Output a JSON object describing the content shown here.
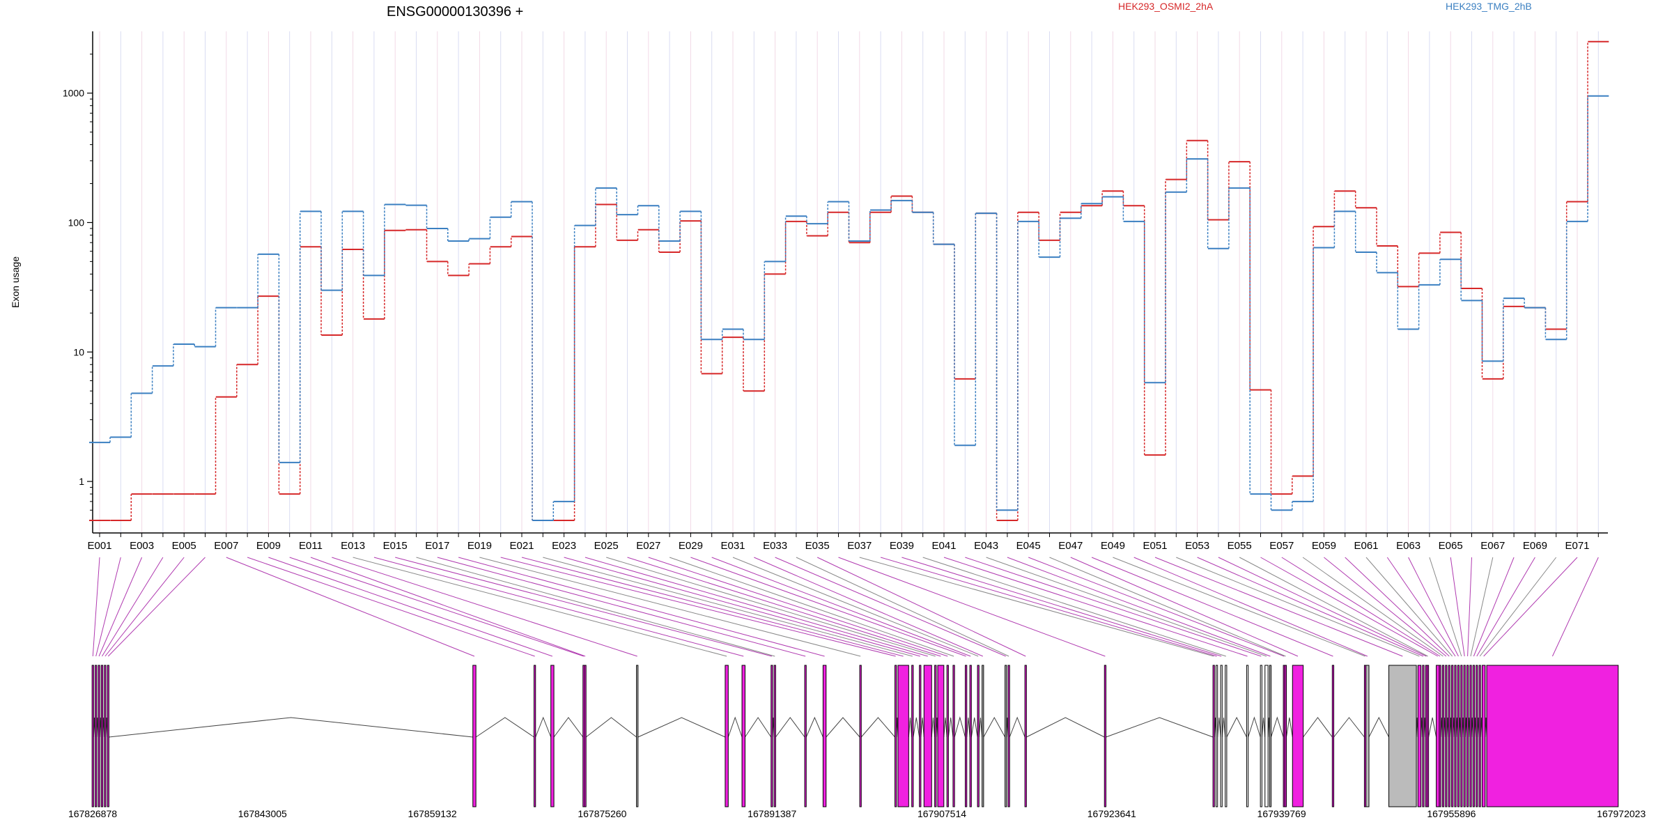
{
  "chart_data": {
    "type": "line",
    "title": "ENSG00000130396 +",
    "ylabel": "Exon usage",
    "yscale": "log",
    "ylim": [
      0.4,
      3000
    ],
    "yticks": [
      1,
      10,
      100,
      1000
    ],
    "ytick_labels": [
      "1",
      "10",
      "100",
      "1000"
    ],
    "grid": "vertical lines at each exon",
    "legend_placement": "top",
    "categories": [
      "E001",
      "E002",
      "E003",
      "E004",
      "E005",
      "E006",
      "E007",
      "E008",
      "E009",
      "E010",
      "E011",
      "E012",
      "E013",
      "E014",
      "E015",
      "E016",
      "E017",
      "E018",
      "E019",
      "E020",
      "E021",
      "E022",
      "E023",
      "E024",
      "E025",
      "E026",
      "E027",
      "E028",
      "E029",
      "E030",
      "E031",
      "E032",
      "E033",
      "E034",
      "E035",
      "E036",
      "E037",
      "E038",
      "E039",
      "E040",
      "E041",
      "E042",
      "E043",
      "E044",
      "E045",
      "E046",
      "E047",
      "E048",
      "E049",
      "E050",
      "E051",
      "E052",
      "E053",
      "E054",
      "E055",
      "E056",
      "E057",
      "E058",
      "E059",
      "E060",
      "E061",
      "E062",
      "E063",
      "E064",
      "E065",
      "E066",
      "E067",
      "E068",
      "E069",
      "E070",
      "E071",
      "E072"
    ],
    "tick_labels": [
      "E001",
      "E003",
      "E005",
      "E007",
      "E009",
      "E011",
      "E013",
      "E015",
      "E017",
      "E019",
      "E021",
      "E023",
      "E025",
      "E027",
      "E029",
      "E031",
      "E033",
      "E035",
      "E037",
      "E039",
      "E041",
      "E043",
      "E045",
      "E047",
      "E049",
      "E051",
      "E053",
      "E055",
      "E057",
      "E059",
      "E061",
      "E063",
      "E065",
      "E067",
      "E069",
      "E071"
    ],
    "series": [
      {
        "name": "HEK293_OSMI2_2hA",
        "color": "#d62728",
        "values": [
          0.5,
          0.5,
          0.8,
          0.8,
          0.8,
          0.8,
          4.5,
          8,
          27,
          0.8,
          65,
          13.5,
          62,
          18,
          87,
          88,
          50,
          39,
          48,
          65,
          78,
          0.5,
          0.5,
          65,
          138,
          73,
          88,
          59,
          103,
          6.8,
          13,
          5,
          40,
          102,
          79,
          120,
          70,
          120,
          160,
          120,
          68,
          6.2,
          118,
          0.5,
          120,
          73,
          120,
          135,
          175,
          135,
          1.6,
          215,
          430,
          105,
          295,
          5.1,
          0.8,
          1.1,
          93,
          175,
          130,
          66,
          32,
          58,
          84,
          31,
          6.2,
          22.5,
          22,
          15,
          145,
          2500
        ]
      },
      {
        "name": "HEK293_TMG_2hB",
        "color": "#3a7fc1",
        "values": [
          2.0,
          2.2,
          4.8,
          7.8,
          11.5,
          11,
          22,
          22,
          57,
          1.4,
          122,
          30,
          122,
          39,
          138,
          136,
          90,
          72,
          75,
          110,
          145,
          0.5,
          0.7,
          95,
          185,
          115,
          135,
          72,
          122,
          12.5,
          15,
          12.5,
          50,
          112,
          98,
          145,
          72,
          125,
          148,
          120,
          68,
          1.9,
          118,
          0.6,
          102,
          54,
          108,
          140,
          158,
          102,
          5.8,
          172,
          310,
          63,
          185,
          0.8,
          0.6,
          0.7,
          64,
          122,
          59,
          41,
          15,
          33,
          52,
          25,
          8.5,
          26,
          22,
          12.5,
          102,
          950
        ]
      }
    ]
  },
  "gene_model": {
    "coord_ticks": [
      "167826878",
      "167843005",
      "167859132",
      "167875260",
      "167891387",
      "167907514",
      "167923641",
      "167939769",
      "167955896",
      "167972023"
    ],
    "exon_color": "#f021e0",
    "intron_color": "#000000",
    "gray_color": "#bbbbbb"
  }
}
